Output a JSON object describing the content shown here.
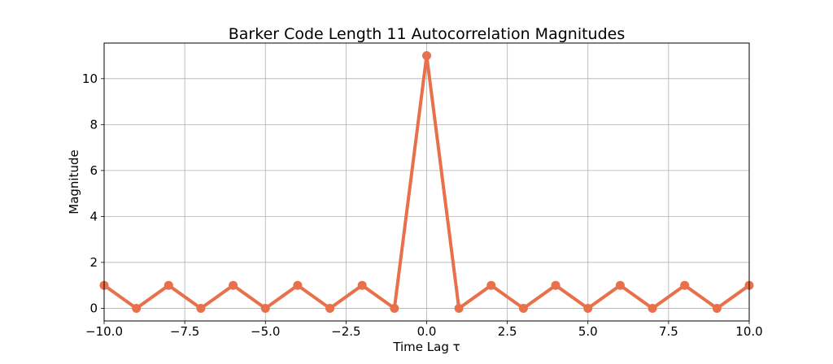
{
  "chart_data": {
    "type": "line",
    "title": "Barker Code Length 11 Autocorrelation Magnitudes",
    "xlabel": "Time Lag τ",
    "ylabel": "Magnitude",
    "x": [
      -10,
      -9,
      -8,
      -7,
      -6,
      -5,
      -4,
      -3,
      -2,
      -1,
      0,
      1,
      2,
      3,
      4,
      5,
      6,
      7,
      8,
      9,
      10
    ],
    "series": [
      {
        "values": [
          1,
          0,
          1,
          0,
          1,
          0,
          1,
          0,
          1,
          0,
          11,
          0,
          1,
          0,
          1,
          0,
          1,
          0,
          1,
          0,
          1
        ],
        "color": "#E8704A",
        "marker": "circle"
      }
    ],
    "xlim": [
      -10,
      10
    ],
    "ylim": [
      -0.55,
      11.55
    ],
    "xticks": [
      -10,
      -7.5,
      -5,
      -2.5,
      0,
      2.5,
      5,
      7.5,
      10
    ],
    "xtick_labels": [
      "−10.0",
      "−7.5",
      "−5.0",
      "−2.5",
      "0.0",
      "2.5",
      "5.0",
      "7.5",
      "10.0"
    ],
    "yticks": [
      0,
      2,
      4,
      6,
      8,
      10
    ],
    "ytick_labels": [
      "0",
      "2",
      "4",
      "6",
      "8",
      "10"
    ],
    "grid": true
  }
}
